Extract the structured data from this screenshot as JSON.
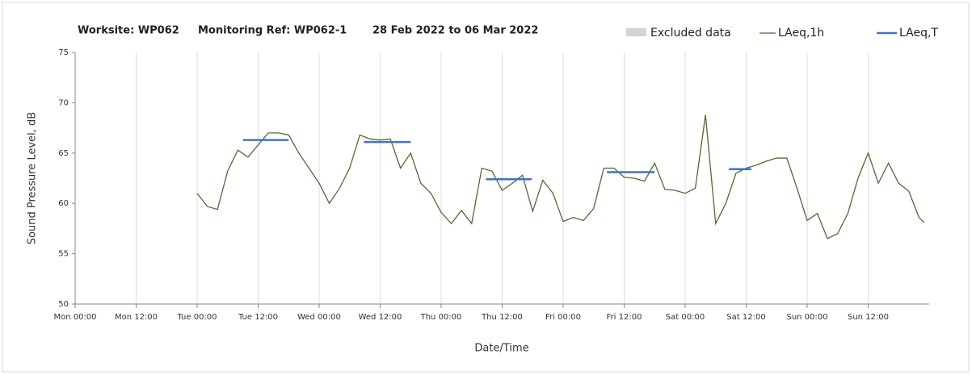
{
  "chart_data": {
    "type": "line",
    "title": [
      "Worksite: WP062",
      "Monitoring Ref: WP062-1",
      "28 Feb 2022 to 06 Mar 2022"
    ],
    "xlabel": "Date/Time",
    "ylabel": "Sound Pressure Level, dB",
    "xlim": [
      0,
      168
    ],
    "ylim": [
      50,
      75
    ],
    "yticks": [
      50,
      55,
      60,
      65,
      70,
      75
    ],
    "xticks": [
      {
        "value": 0,
        "label": "Mon 00:00"
      },
      {
        "value": 12,
        "label": "Mon 12:00"
      },
      {
        "value": 24,
        "label": "Tue 00:00"
      },
      {
        "value": 36,
        "label": "Tue 12:00"
      },
      {
        "value": 48,
        "label": "Wed 00:00"
      },
      {
        "value": 60,
        "label": "Wed 12:00"
      },
      {
        "value": 72,
        "label": "Thu 00:00"
      },
      {
        "value": 84,
        "label": "Thu 12:00"
      },
      {
        "value": 96,
        "label": "Fri 00:00"
      },
      {
        "value": 108,
        "label": "Fri 12:00"
      },
      {
        "value": 120,
        "label": "Sat 00:00"
      },
      {
        "value": 132,
        "label": "Sat 12:00"
      },
      {
        "value": 144,
        "label": "Sun 00:00"
      },
      {
        "value": 156,
        "label": "Sun 12:00"
      }
    ],
    "grid": true,
    "excluded": {
      "name": "Excluded data",
      "color": "#d4d4d4"
    },
    "series": [
      {
        "name": "LAeq,1h",
        "color": "#4f6b2f",
        "x": [
          24,
          26,
          28,
          30,
          32,
          34,
          36,
          38,
          40,
          42,
          44,
          46,
          48,
          50,
          52,
          54,
          56,
          58,
          60,
          62,
          64,
          66,
          68,
          70,
          72,
          74,
          76,
          78,
          80,
          82,
          84,
          86,
          88,
          90,
          92,
          94,
          96,
          98,
          100,
          102,
          104,
          106,
          108,
          110,
          112,
          114,
          116,
          118,
          120,
          122,
          124,
          126,
          128,
          130,
          132,
          134,
          136,
          138,
          140,
          142,
          144,
          146,
          148,
          150,
          152,
          154,
          156,
          158,
          160,
          162,
          164,
          166,
          167
        ],
        "values": [
          61.0,
          59.7,
          59.4,
          63.2,
          65.3,
          64.6,
          65.8,
          67.0,
          67.0,
          66.8,
          65.0,
          63.5,
          62.0,
          60.0,
          61.5,
          63.5,
          66.8,
          66.4,
          66.3,
          66.4,
          63.5,
          65.0,
          62.0,
          61.0,
          59.1,
          58.0,
          59.3,
          58.0,
          63.5,
          63.2,
          61.3,
          62.0,
          62.8,
          59.2,
          62.3,
          61.0,
          58.2,
          58.6,
          58.3,
          59.5,
          63.5,
          63.5,
          62.6,
          62.5,
          62.2,
          64.0,
          61.4,
          61.3,
          61.0,
          61.5,
          68.8,
          58.0,
          60.0,
          63.0,
          63.5,
          63.8,
          64.2,
          64.5,
          64.5,
          61.5,
          58.3,
          59.0,
          56.5,
          57.0,
          59.0,
          62.5,
          65.0,
          62.0,
          64.0,
          62.0,
          61.2,
          58.6,
          58.1
        ]
      }
    ],
    "periods": {
      "name": "LAeq,T",
      "color": "#4472c4",
      "segments": [
        {
          "x": [
            33,
            42
          ],
          "value": 66.3
        },
        {
          "x": [
            56.8,
            66
          ],
          "value": 66.1
        },
        {
          "x": [
            80.8,
            89.8
          ],
          "value": 62.4
        },
        {
          "x": [
            104.6,
            114
          ],
          "value": 63.1
        },
        {
          "x": [
            128.6,
            133
          ],
          "value": 63.4
        }
      ]
    }
  }
}
